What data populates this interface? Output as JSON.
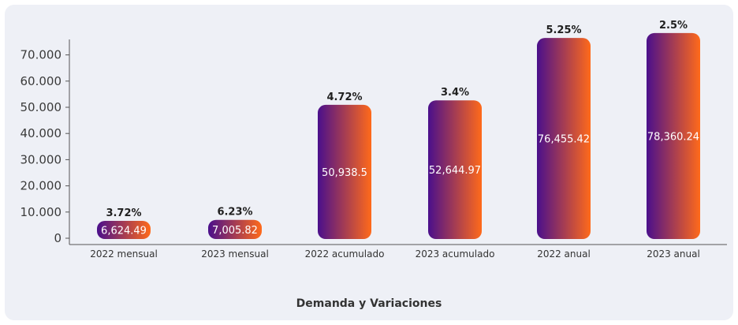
{
  "chart_data": {
    "type": "bar",
    "title": "Demanda y Variaciones",
    "categories": [
      "2022 mensual",
      "2023 mensual",
      "2022 acumulado",
      "2023 acumulado",
      "2022 anual",
      "2023 anual"
    ],
    "values": [
      6624.49,
      7005.82,
      50938.5,
      52644.97,
      76455.42,
      78360.24
    ],
    "value_labels": [
      "6,624.49",
      "7,005.82",
      "50,938.5",
      "52,644.97",
      "76,455.42",
      "78,360.24"
    ],
    "variation_labels": [
      "3.72%",
      "6.23%",
      "4.72%",
      "3.4%",
      "5.25%",
      "2.5%"
    ],
    "yticks": [
      0,
      10000,
      20000,
      30000,
      40000,
      50000,
      60000,
      70000
    ],
    "ytick_labels": [
      "0",
      "10.000",
      "20.000",
      "30.000",
      "40.000",
      "50.000",
      "60.000",
      "70.000"
    ],
    "ylim": [
      0,
      80000
    ],
    "grid": false,
    "colors": {
      "bar_gradient_start": "#4a0f8c",
      "bar_gradient_end": "#ff6a1a",
      "card_background": "#eef0f6",
      "axis": "#555555"
    }
  }
}
